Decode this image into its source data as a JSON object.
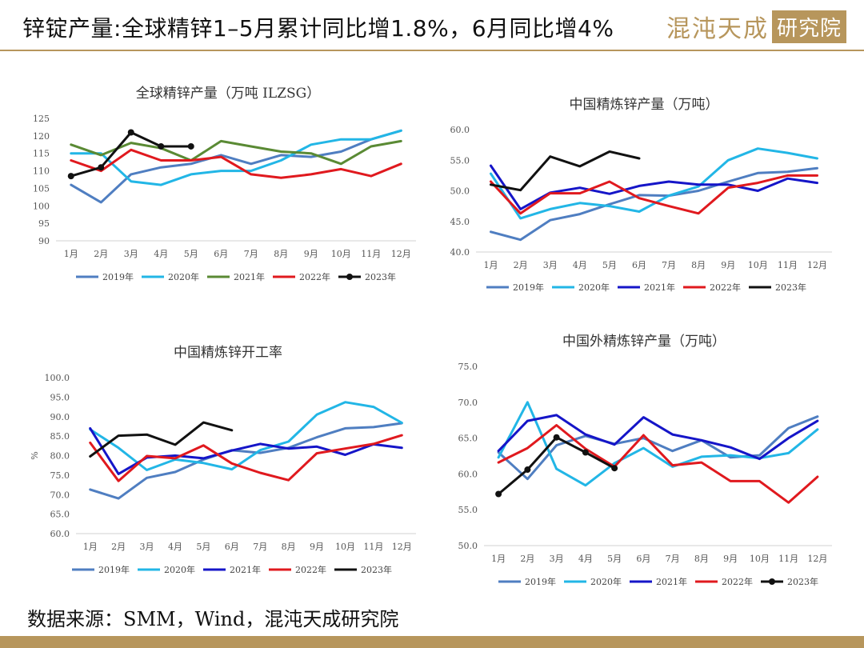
{
  "header": {
    "title": "锌锭产量:全球精锌1–5月累计同比增1.8%，6月同比增4%",
    "logo_text": "混沌天成研究院"
  },
  "footer": {
    "source": "数据来源：SMM，Wind，混沌天成研究院"
  },
  "colors": {
    "2019年": "#4f7ec1",
    "2020年": "#22b6e6",
    "2021年": "#1515c8",
    "2021年_green": "#5a8a34",
    "2022年": "#e0191e",
    "2023年": "#111111",
    "accent": "#b7965c"
  },
  "chart_data": [
    {
      "type": "line",
      "title": "全球精锌产量（万吨 ILZSG）",
      "categories": [
        "1月",
        "2月",
        "3月",
        "4月",
        "5月",
        "6月",
        "7月",
        "8月",
        "9月",
        "10月",
        "11月",
        "12月"
      ],
      "ylim": [
        90,
        125
      ],
      "yticks": [
        "90",
        "95",
        "100",
        "105",
        "110",
        "115",
        "120",
        "125"
      ],
      "series": [
        {
          "name": "2019年",
          "color": "#4f7ec1",
          "values": [
            106,
            101,
            109,
            111,
            112,
            114.5,
            112,
            114.5,
            114,
            115.5,
            119,
            121.5
          ]
        },
        {
          "name": "2020年",
          "color": "#22b6e6",
          "values": [
            115,
            115,
            107,
            106,
            109,
            110,
            110,
            113,
            117.5,
            119,
            119,
            121.5
          ]
        },
        {
          "name": "2021年",
          "color": "#5a8a34",
          "values": [
            117.5,
            114.5,
            118,
            116.5,
            113,
            118.5,
            117,
            115.5,
            115,
            112,
            117,
            118.5
          ]
        },
        {
          "name": "2022年",
          "color": "#e0191e",
          "values": [
            113,
            110,
            116,
            113,
            113,
            114,
            109,
            108,
            109,
            110.5,
            108.5,
            112
          ]
        },
        {
          "name": "2023年",
          "color": "#111111",
          "marker": true,
          "values": [
            108.5,
            111,
            121,
            117,
            117,
            null,
            null,
            null,
            null,
            null,
            null,
            null
          ]
        }
      ]
    },
    {
      "type": "line",
      "title": "中国精炼锌产量（万吨）",
      "categories": [
        "1月",
        "2月",
        "3月",
        "4月",
        "5月",
        "6月",
        "7月",
        "8月",
        "9月",
        "10月",
        "11月",
        "12月"
      ],
      "ylim": [
        40,
        60
      ],
      "yticks": [
        "40.0",
        "45.0",
        "50.0",
        "55.0",
        "60.0"
      ],
      "series": [
        {
          "name": "2019年",
          "color": "#4f7ec1",
          "values": [
            43.3,
            42,
            45.2,
            46.2,
            47.8,
            49.3,
            49.2,
            50,
            51.5,
            52.9,
            53.1,
            53.7
          ]
        },
        {
          "name": "2020年",
          "color": "#22b6e6",
          "values": [
            52.8,
            45.5,
            47,
            48,
            47.5,
            46.6,
            49.2,
            50.7,
            55,
            56.9,
            56.2,
            55.3
          ]
        },
        {
          "name": "2021年",
          "color": "#1515c8",
          "values": [
            54.1,
            47,
            49.7,
            50.5,
            49.5,
            50.8,
            51.5,
            51,
            51,
            50,
            52,
            51.3
          ]
        },
        {
          "name": "2022年",
          "color": "#e0191e",
          "values": [
            51.5,
            46.3,
            49.6,
            49.6,
            51.5,
            48.8,
            47.5,
            46.3,
            50.5,
            51.3,
            52.5,
            52.5
          ]
        },
        {
          "name": "2023年",
          "color": "#111111",
          "values": [
            51,
            50.1,
            55.6,
            54,
            56.4,
            55.3,
            null,
            null,
            null,
            null,
            null,
            null
          ]
        }
      ]
    },
    {
      "type": "line",
      "title": "中国精炼锌开工率",
      "ylabel": "%",
      "categories": [
        "1月",
        "2月",
        "3月",
        "4月",
        "5月",
        "6月",
        "7月",
        "8月",
        "9月",
        "10月",
        "11月",
        "12月"
      ],
      "ylim": [
        60,
        100
      ],
      "yticks": [
        "60.0",
        "65.0",
        "70.0",
        "75.0",
        "80.0",
        "85.0",
        "90.0",
        "95.0",
        "100.0"
      ],
      "series": [
        {
          "name": "2019年",
          "color": "#4f7ec1",
          "values": [
            71.3,
            69,
            74.3,
            75.8,
            79,
            81.4,
            80.7,
            82,
            84.7,
            87,
            87.3,
            88.3
          ]
        },
        {
          "name": "2020年",
          "color": "#22b6e6",
          "values": [
            86.7,
            82,
            76.3,
            79,
            78.1,
            76.5,
            81.4,
            83.6,
            90.5,
            93.7,
            92.5,
            88.4
          ]
        },
        {
          "name": "2021年",
          "color": "#1515c8",
          "values": [
            87,
            75.3,
            79.5,
            80,
            79.3,
            81.3,
            83,
            81.8,
            82.3,
            80.2,
            82.9,
            82
          ]
        },
        {
          "name": "2022年",
          "color": "#e0191e",
          "values": [
            83.3,
            73.5,
            79.9,
            79.3,
            82.6,
            78,
            75.6,
            73.7,
            80.6,
            81.8,
            83,
            85.2
          ]
        },
        {
          "name": "2023年",
          "color": "#111111",
          "values": [
            79.8,
            85.1,
            85.4,
            82.8,
            88.5,
            86.5,
            null,
            null,
            null,
            null,
            null,
            null
          ]
        }
      ]
    },
    {
      "type": "line",
      "title": "中国外精炼锌产量（万吨）",
      "categories": [
        "1月",
        "2月",
        "3月",
        "4月",
        "5月",
        "6月",
        "7月",
        "8月",
        "9月",
        "10月",
        "11月",
        "12月"
      ],
      "ylim": [
        50,
        75
      ],
      "yticks": [
        "50.0",
        "55.0",
        "60.0",
        "65.0",
        "70.0",
        "75.0"
      ],
      "series": [
        {
          "name": "2019年",
          "color": "#4f7ec1",
          "values": [
            63,
            59.3,
            64,
            65.3,
            64.2,
            65,
            63.2,
            64.7,
            62.3,
            62.6,
            66.4,
            68
          ]
        },
        {
          "name": "2020年",
          "color": "#22b6e6",
          "values": [
            62.3,
            70,
            60.7,
            58.4,
            61.5,
            63.6,
            61,
            62.4,
            62.6,
            62.2,
            62.9,
            66.2
          ]
        },
        {
          "name": "2021年",
          "color": "#1515c8",
          "values": [
            63.2,
            67.4,
            68.2,
            65.5,
            64.1,
            67.9,
            65.5,
            64.7,
            63.7,
            62.1,
            65,
            67.4
          ]
        },
        {
          "name": "2022年",
          "color": "#e0191e",
          "values": [
            61.6,
            63.6,
            66.8,
            63.5,
            61,
            65.4,
            61.2,
            61.6,
            59,
            59,
            56,
            59.6
          ]
        },
        {
          "name": "2023年",
          "color": "#111111",
          "marker": true,
          "values": [
            57.2,
            60.6,
            65.1,
            63,
            60.8,
            null,
            null,
            null,
            null,
            null,
            null,
            null
          ]
        }
      ]
    }
  ]
}
